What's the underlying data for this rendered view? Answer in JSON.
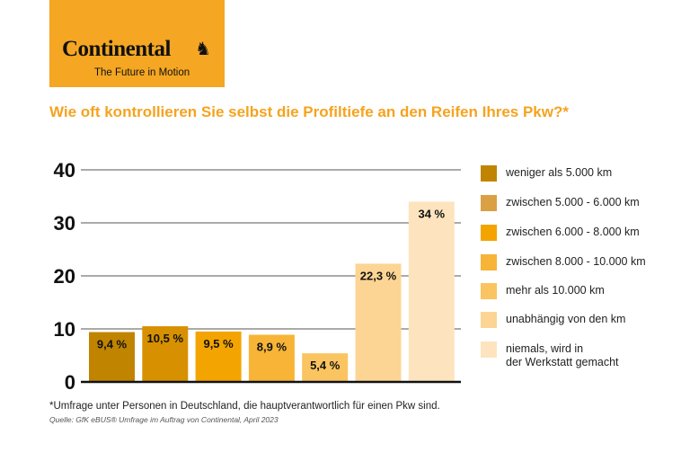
{
  "brand": {
    "logo": "Continental",
    "tagline": "The Future in Motion",
    "color": "#f5a623"
  },
  "title": "Wie oft kontrollieren Sie selbst die Profiltiefe an den Reifen Ihres Pkw?*",
  "chart_data": {
    "type": "bar",
    "title": "Wie oft kontrollieren Sie selbst die Profiltiefe an den Reifen Ihres Pkw?*",
    "categories": [
      "weniger als 5.000 km",
      "zwischen 5.000 - 6.000 km",
      "zwischen 6.000 - 8.000 km",
      "zwischen 8.000 - 10.000 km",
      "mehr als 10.000 km",
      "unabhängig von den km",
      "niemals, wird in der Werkstatt gemacht"
    ],
    "legend_lines": [
      [
        "weniger als 5.000 km"
      ],
      [
        "zwischen 5.000 - 6.000 km"
      ],
      [
        "zwischen 6.000 - 8.000 km"
      ],
      [
        "zwischen 8.000 - 10.000 km"
      ],
      [
        "mehr als 10.000 km"
      ],
      [
        "unabhängig von den km"
      ],
      [
        "niemals, wird in",
        "der Werkstatt gemacht"
      ]
    ],
    "values": [
      9.4,
      10.5,
      9.5,
      8.9,
      5.4,
      22.3,
      34
    ],
    "data_labels": [
      "9,4 %",
      "10,5 %",
      "9,5 %",
      "8,9 %",
      "5,4 %",
      "22,3 %",
      "34 %"
    ],
    "colors": [
      "#c08400",
      "#d79100",
      "#f4a400",
      "#f7b437",
      "#fac460",
      "#fcd594",
      "#fde4bf"
    ],
    "legend_colors": [
      "#c08400",
      "#dba043",
      "#f4a400",
      "#f7b437",
      "#fac460",
      "#fcd594",
      "#fde4bf"
    ],
    "yticks": [
      0,
      10,
      20,
      30,
      40
    ],
    "ylim": [
      0,
      40
    ],
    "grid": true,
    "legend_position": "right",
    "xlabel": "",
    "ylabel": ""
  },
  "footnote": "*Umfrage unter Personen in Deutschland,  die hauptverantwortlich für einen Pkw sind.",
  "source": "Quelle: GfK eBUS® Umfrage im Auftrag von Continental, April 2023"
}
